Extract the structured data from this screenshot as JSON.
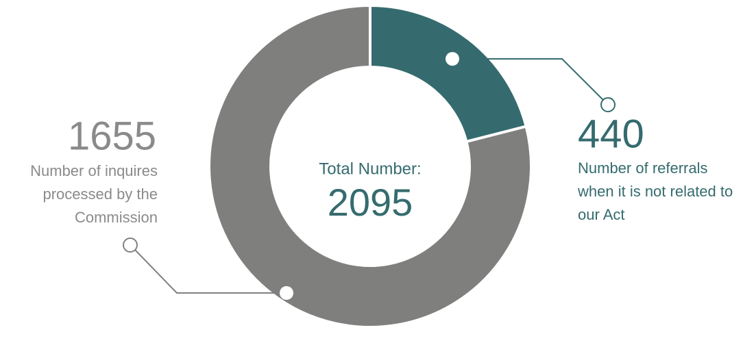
{
  "chart_data": {
    "type": "pie",
    "donut": true,
    "categories": [
      "Number of referrals when it is not related to our Act",
      "Number of inquires processed by the Commission"
    ],
    "values": [
      440,
      1655
    ],
    "colors": [
      "#356b6e",
      "#7f807e"
    ],
    "center_label": "Total Number:",
    "total": 2095
  }
}
